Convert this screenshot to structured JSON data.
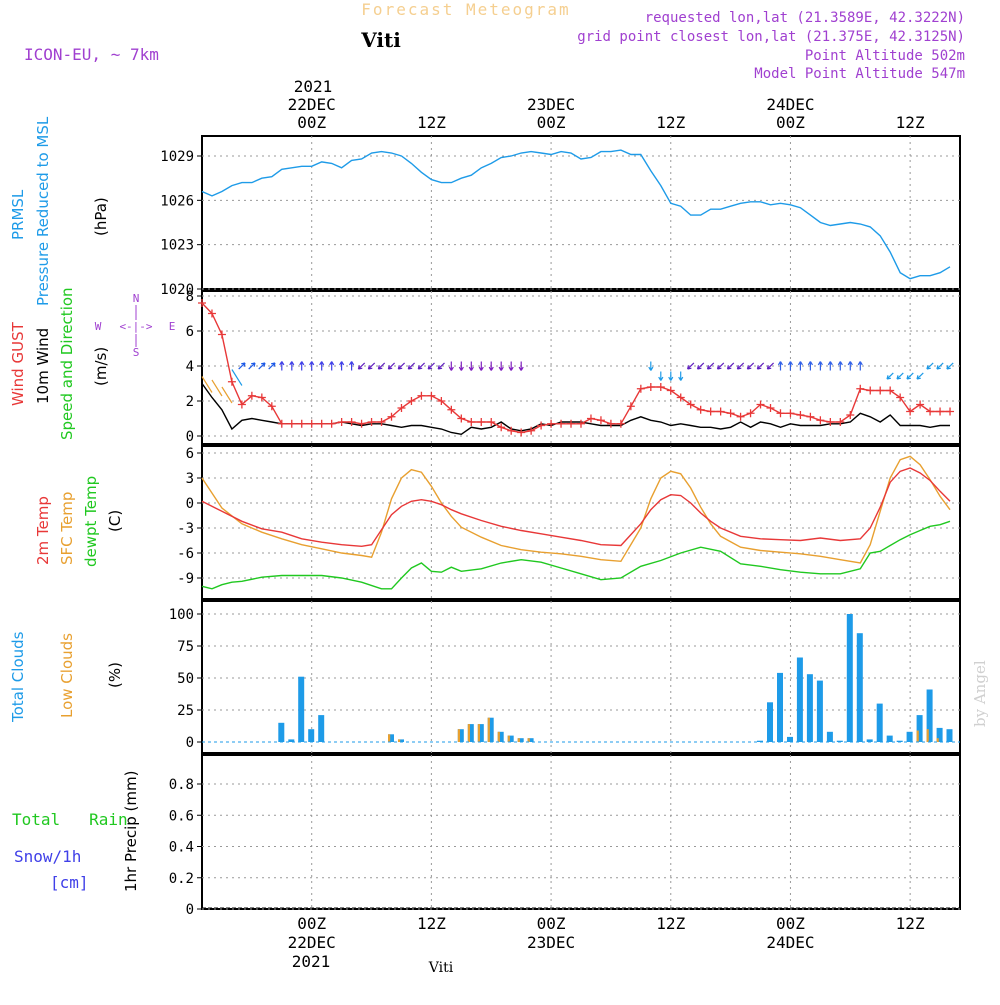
{
  "header": {
    "title": "Forecast Meteogram",
    "location": "Viti",
    "model": "ICON-EU, ~ 7km",
    "requested": "requested lon,lat (21.3589E, 42.3222N)",
    "grid_point": "grid point closest lon,lat (21.375E, 42.3125N)",
    "point_altitude": "Point Altitude 502m",
    "model_altitude": "Model Point Altitude 547m",
    "credit": "by Angel",
    "footer_location": "Viti"
  },
  "time_axis": {
    "year_label": "2021",
    "ticks": [
      {
        "h": 0,
        "hour": "00Z",
        "date": "22DEC"
      },
      {
        "h": 12,
        "hour": "12Z",
        "date": ""
      },
      {
        "h": 24,
        "hour": "00Z",
        "date": "23DEC"
      },
      {
        "h": 36,
        "hour": "12Z",
        "date": ""
      },
      {
        "h": 48,
        "hour": "00Z",
        "date": "24DEC"
      },
      {
        "h": 60,
        "hour": "12Z",
        "date": ""
      }
    ]
  },
  "colors": {
    "pressure": "#1e9be8",
    "gust": "#e83838",
    "wind": "#000000",
    "temp2m": "#e83838",
    "sfc": "#e8a030",
    "dewpt": "#20c820",
    "total_clouds": "#1e9be8",
    "low_clouds": "#e8a030",
    "purple": "#a040d0",
    "rain": "#20c820",
    "snow": "#4040e8"
  },
  "panels": {
    "pressure": {
      "label1": "PRMSL",
      "label2": "Pressure Reduced to MSL",
      "unit": "(hPa)"
    },
    "wind": {
      "gust": "Wind GUST",
      "wind10": "10m Wind",
      "dir": "Speed and Direction",
      "unit": "(m/s)",
      "compass_n": "N",
      "compass_s": "S",
      "compass_w": "W",
      "compass_e": "E",
      "compass_mid": "<-|->"
    },
    "temp": {
      "t2m": "2m Temp",
      "sfc": "SFC Temp",
      "dewpt": "dewpt Temp",
      "unit": "(C)"
    },
    "clouds": {
      "total": "Total Clouds",
      "low": "Low Clouds",
      "unit": "(%)"
    },
    "precip": {
      "rain": "Total   Rain",
      "snow": "Snow/1h",
      "snow_unit": "[cm]",
      "unit": "1hr Precip (mm)"
    }
  },
  "chart_data": [
    {
      "type": "line",
      "name": "pressure",
      "x_unit": "hours since 22DEC 00Z",
      "ylim": [
        1020,
        1030
      ],
      "yticks": [
        1020,
        1023,
        1026,
        1029
      ],
      "grid": true,
      "series": [
        {
          "name": "PRMSL",
          "x": [
            -11,
            -10,
            -9,
            -8,
            -7,
            -6,
            -5,
            -4,
            -3,
            -2,
            -1,
            0,
            1,
            2,
            3,
            4,
            5,
            6,
            7,
            8,
            9,
            10,
            11,
            12,
            13,
            14,
            15,
            16,
            17,
            18,
            19,
            20,
            21,
            22,
            23,
            24,
            25,
            26,
            27,
            28,
            29,
            30,
            31,
            32,
            33,
            34,
            35,
            36,
            37,
            38,
            39,
            40,
            41,
            42,
            43,
            44,
            45,
            46,
            47,
            48,
            49,
            50,
            51,
            52,
            53,
            54,
            55,
            56,
            57,
            58,
            59,
            60,
            61,
            62,
            63,
            64
          ],
          "y": [
            1026.6,
            1026.3,
            1026.6,
            1027.0,
            1027.2,
            1027.2,
            1027.5,
            1027.6,
            1028.1,
            1028.2,
            1028.3,
            1028.3,
            1028.6,
            1028.5,
            1028.2,
            1028.7,
            1028.8,
            1029.2,
            1029.3,
            1029.2,
            1029.0,
            1028.5,
            1027.9,
            1027.4,
            1027.2,
            1027.2,
            1027.5,
            1027.7,
            1028.2,
            1028.5,
            1028.9,
            1029.0,
            1029.2,
            1029.3,
            1029.2,
            1029.1,
            1029.3,
            1029.2,
            1028.8,
            1028.9,
            1029.3,
            1029.3,
            1029.4,
            1029.1,
            1029.1,
            1028.0,
            1027.0,
            1025.8,
            1025.6,
            1025.0,
            1025.0,
            1025.4,
            1025.4,
            1025.6,
            1025.8,
            1025.9,
            1025.9,
            1025.7,
            1025.8,
            1025.7,
            1025.5,
            1025.0,
            1024.5,
            1024.3,
            1024.4,
            1024.5,
            1024.4,
            1024.2,
            1023.6,
            1022.5,
            1021.1,
            1020.7,
            1020.9,
            1020.9,
            1021.1,
            1021.5
          ]
        }
      ]
    },
    {
      "type": "line",
      "name": "wind",
      "ylim": [
        0,
        8
      ],
      "yticks": [
        0,
        2,
        4,
        6,
        8
      ],
      "grid": true,
      "series": [
        {
          "name": "Wind GUST",
          "x": [
            -11,
            -10,
            -9,
            -8,
            -7,
            -6,
            -5,
            -4,
            -3,
            -2,
            -1,
            0,
            1,
            2,
            3,
            4,
            5,
            6,
            7,
            8,
            9,
            10,
            11,
            12,
            13,
            14,
            15,
            16,
            17,
            18,
            19,
            20,
            21,
            22,
            23,
            24,
            25,
            26,
            27,
            28,
            29,
            30,
            31,
            32,
            33,
            34,
            35,
            36,
            37,
            38,
            39,
            40,
            41,
            42,
            43,
            44,
            45,
            46,
            47,
            48,
            49,
            50,
            51,
            52,
            53,
            54,
            55,
            56,
            57,
            58,
            59,
            60,
            61,
            62,
            63,
            64
          ],
          "y": [
            7.6,
            7.0,
            5.8,
            3.1,
            1.8,
            2.3,
            2.2,
            1.7,
            0.7,
            0.7,
            0.7,
            0.7,
            0.7,
            0.7,
            0.8,
            0.8,
            0.7,
            0.8,
            0.8,
            1.1,
            1.6,
            2.0,
            2.3,
            2.3,
            2.0,
            1.5,
            1.0,
            0.8,
            0.8,
            0.8,
            0.5,
            0.3,
            0.2,
            0.3,
            0.6,
            0.7,
            0.7,
            0.7,
            0.7,
            1.0,
            0.9,
            0.7,
            0.7,
            1.7,
            2.7,
            2.8,
            2.8,
            2.6,
            2.2,
            1.8,
            1.5,
            1.4,
            1.4,
            1.3,
            1.1,
            1.3,
            1.8,
            1.6,
            1.3,
            1.3,
            1.2,
            1.1,
            0.9,
            0.8,
            0.8,
            1.2,
            2.7,
            2.6,
            2.6,
            2.6,
            2.2,
            1.4,
            1.8,
            1.4,
            1.4,
            1.4
          ]
        },
        {
          "name": "10m Wind",
          "x": [
            -11,
            -10,
            -9,
            -8,
            -7,
            -6,
            -5,
            -4,
            -3,
            -2,
            -1,
            0,
            1,
            2,
            3,
            4,
            5,
            6,
            7,
            8,
            9,
            10,
            11,
            12,
            13,
            14,
            15,
            16,
            17,
            18,
            19,
            20,
            21,
            22,
            23,
            24,
            25,
            26,
            27,
            28,
            29,
            30,
            31,
            32,
            33,
            34,
            35,
            36,
            37,
            38,
            39,
            40,
            41,
            42,
            43,
            44,
            45,
            46,
            47,
            48,
            49,
            50,
            51,
            52,
            53,
            54,
            55,
            56,
            57,
            58,
            59,
            60,
            61,
            62,
            63,
            64
          ],
          "y": [
            3.0,
            2.2,
            1.5,
            0.4,
            0.9,
            1.0,
            0.9,
            0.8,
            0.7,
            0.7,
            0.7,
            0.7,
            0.7,
            0.7,
            0.8,
            0.7,
            0.6,
            0.7,
            0.7,
            0.6,
            0.5,
            0.6,
            0.6,
            0.5,
            0.4,
            0.2,
            0.1,
            0.5,
            0.4,
            0.5,
            0.8,
            0.4,
            0.3,
            0.4,
            0.7,
            0.6,
            0.8,
            0.8,
            0.8,
            0.7,
            0.6,
            0.6,
            0.6,
            0.9,
            1.1,
            0.9,
            0.8,
            0.6,
            0.7,
            0.6,
            0.5,
            0.5,
            0.4,
            0.5,
            0.8,
            0.5,
            0.8,
            0.7,
            0.5,
            0.7,
            0.6,
            0.6,
            0.6,
            0.7,
            0.7,
            0.8,
            1.3,
            1.1,
            0.8,
            1.2,
            0.6,
            0.6,
            0.6,
            0.5,
            0.6,
            0.6
          ]
        }
      ]
    },
    {
      "type": "line",
      "name": "temperature",
      "ylim": [
        -11,
        6.5
      ],
      "yticks": [
        -9,
        -6,
        -3,
        0,
        3,
        6
      ],
      "grid": true,
      "series": [
        {
          "name": "2m Temp",
          "x": [
            -11,
            -9,
            -7,
            -5,
            -3,
            -1,
            1,
            3,
            5,
            6,
            7,
            8,
            9,
            10,
            11,
            12,
            13,
            14,
            15,
            17,
            19,
            21,
            23,
            25,
            27,
            29,
            31,
            33,
            34,
            35,
            36,
            37,
            38,
            39,
            40,
            41,
            43,
            45,
            47,
            49,
            51,
            53,
            55,
            56,
            57,
            58,
            59,
            60,
            61,
            62,
            63,
            64
          ],
          "y": [
            0.2,
            -1.0,
            -2.2,
            -3.1,
            -3.5,
            -4.3,
            -4.7,
            -5.0,
            -5.2,
            -5.0,
            -3.2,
            -1.4,
            -0.4,
            0.2,
            0.4,
            0.2,
            -0.2,
            -0.8,
            -1.3,
            -2.1,
            -2.8,
            -3.3,
            -3.7,
            -4.1,
            -4.5,
            -5.0,
            -5.1,
            -2.5,
            -0.8,
            0.4,
            1.0,
            0.9,
            0.0,
            -1.2,
            -2.2,
            -3.0,
            -4.0,
            -4.3,
            -4.4,
            -4.5,
            -4.2,
            -4.5,
            -4.3,
            -3.0,
            -0.5,
            2.5,
            3.8,
            4.2,
            3.6,
            2.7,
            1.4,
            0.2
          ]
        },
        {
          "name": "SFC Temp",
          "x": [
            -11,
            -9,
            -7,
            -5,
            -3,
            -1,
            1,
            3,
            5,
            6,
            7,
            8,
            9,
            10,
            11,
            12,
            13,
            14,
            15,
            17,
            19,
            21,
            23,
            25,
            27,
            29,
            31,
            33,
            34,
            35,
            36,
            37,
            38,
            39,
            40,
            41,
            43,
            45,
            47,
            49,
            51,
            53,
            55,
            56,
            57,
            58,
            59,
            60,
            61,
            62,
            63,
            64
          ],
          "y": [
            3.0,
            -0.6,
            -2.5,
            -3.5,
            -4.3,
            -5.0,
            -5.5,
            -6.0,
            -6.3,
            -6.5,
            -3.5,
            0.5,
            3.0,
            4.0,
            3.7,
            2.0,
            0.0,
            -1.6,
            -2.9,
            -4.1,
            -5.1,
            -5.6,
            -5.9,
            -6.1,
            -6.4,
            -6.8,
            -7.0,
            -3.0,
            0.5,
            3.0,
            3.8,
            3.5,
            1.8,
            -0.5,
            -2.5,
            -4.0,
            -5.3,
            -5.7,
            -5.9,
            -6.1,
            -6.4,
            -6.8,
            -7.2,
            -5.0,
            -1.0,
            3.0,
            5.2,
            5.6,
            4.6,
            2.8,
            0.8,
            -0.8
          ]
        },
        {
          "name": "dewpt Temp",
          "x": [
            -11,
            -10,
            -9,
            -8,
            -7,
            -5,
            -3,
            -1,
            1,
            3,
            5,
            7,
            8,
            9,
            10,
            11,
            12,
            13,
            14,
            15,
            17,
            19,
            21,
            23,
            25,
            27,
            29,
            31,
            33,
            35,
            37,
            39,
            41,
            43,
            45,
            47,
            49,
            51,
            53,
            55,
            56,
            57,
            58,
            59,
            60,
            61,
            62,
            63,
            64
          ],
          "y": [
            -10.0,
            -10.3,
            -9.8,
            -9.5,
            -9.4,
            -8.9,
            -8.7,
            -8.7,
            -8.7,
            -9.0,
            -9.5,
            -10.3,
            -10.3,
            -9.0,
            -7.8,
            -7.2,
            -8.2,
            -8.3,
            -7.7,
            -8.2,
            -7.9,
            -7.2,
            -6.8,
            -7.1,
            -7.8,
            -8.5,
            -9.2,
            -9.0,
            -7.6,
            -6.9,
            -6.0,
            -5.3,
            -5.8,
            -7.3,
            -7.6,
            -8.0,
            -8.3,
            -8.5,
            -8.5,
            -7.9,
            -6.0,
            -5.8,
            -5.1,
            -4.4,
            -3.8,
            -3.3,
            -2.8,
            -2.6,
            -2.2
          ]
        }
      ]
    },
    {
      "type": "bar",
      "name": "clouds",
      "ylim": [
        0,
        100
      ],
      "yticks": [
        0,
        25,
        50,
        75,
        100
      ],
      "grid": true,
      "series": [
        {
          "name": "Total Clouds",
          "x": [
            -3,
            -2,
            -1,
            0,
            1,
            8,
            9,
            15,
            16,
            17,
            18,
            19,
            20,
            21,
            22,
            45,
            46,
            47,
            48,
            49,
            50,
            51,
            52,
            53,
            54,
            55,
            56,
            57,
            58,
            59,
            60,
            61,
            62,
            63,
            64
          ],
          "y": [
            15,
            2,
            51,
            10,
            21,
            6,
            2,
            10,
            14,
            14,
            19,
            8,
            5,
            3,
            3,
            1,
            31,
            54,
            4,
            66,
            53,
            48,
            8,
            1,
            100,
            85,
            2,
            30,
            5,
            1,
            8,
            21,
            41,
            11,
            10
          ]
        },
        {
          "name": "Low Clouds",
          "x": [
            8,
            9,
            15,
            16,
            17,
            18,
            19,
            20,
            21,
            22,
            61,
            62,
            63
          ],
          "y": [
            6,
            2,
            10,
            14,
            14,
            19,
            8,
            5,
            3,
            3,
            9,
            10,
            3
          ]
        }
      ]
    },
    {
      "type": "bar",
      "name": "precip",
      "ylim": [
        0,
        1
      ],
      "yticks": [
        0,
        0.2,
        0.4,
        0.6,
        0.8
      ],
      "grid": true,
      "series": [
        {
          "name": "Total Rain",
          "x": [],
          "y": []
        },
        {
          "name": "Snow/1h",
          "x": [],
          "y": []
        }
      ]
    }
  ]
}
